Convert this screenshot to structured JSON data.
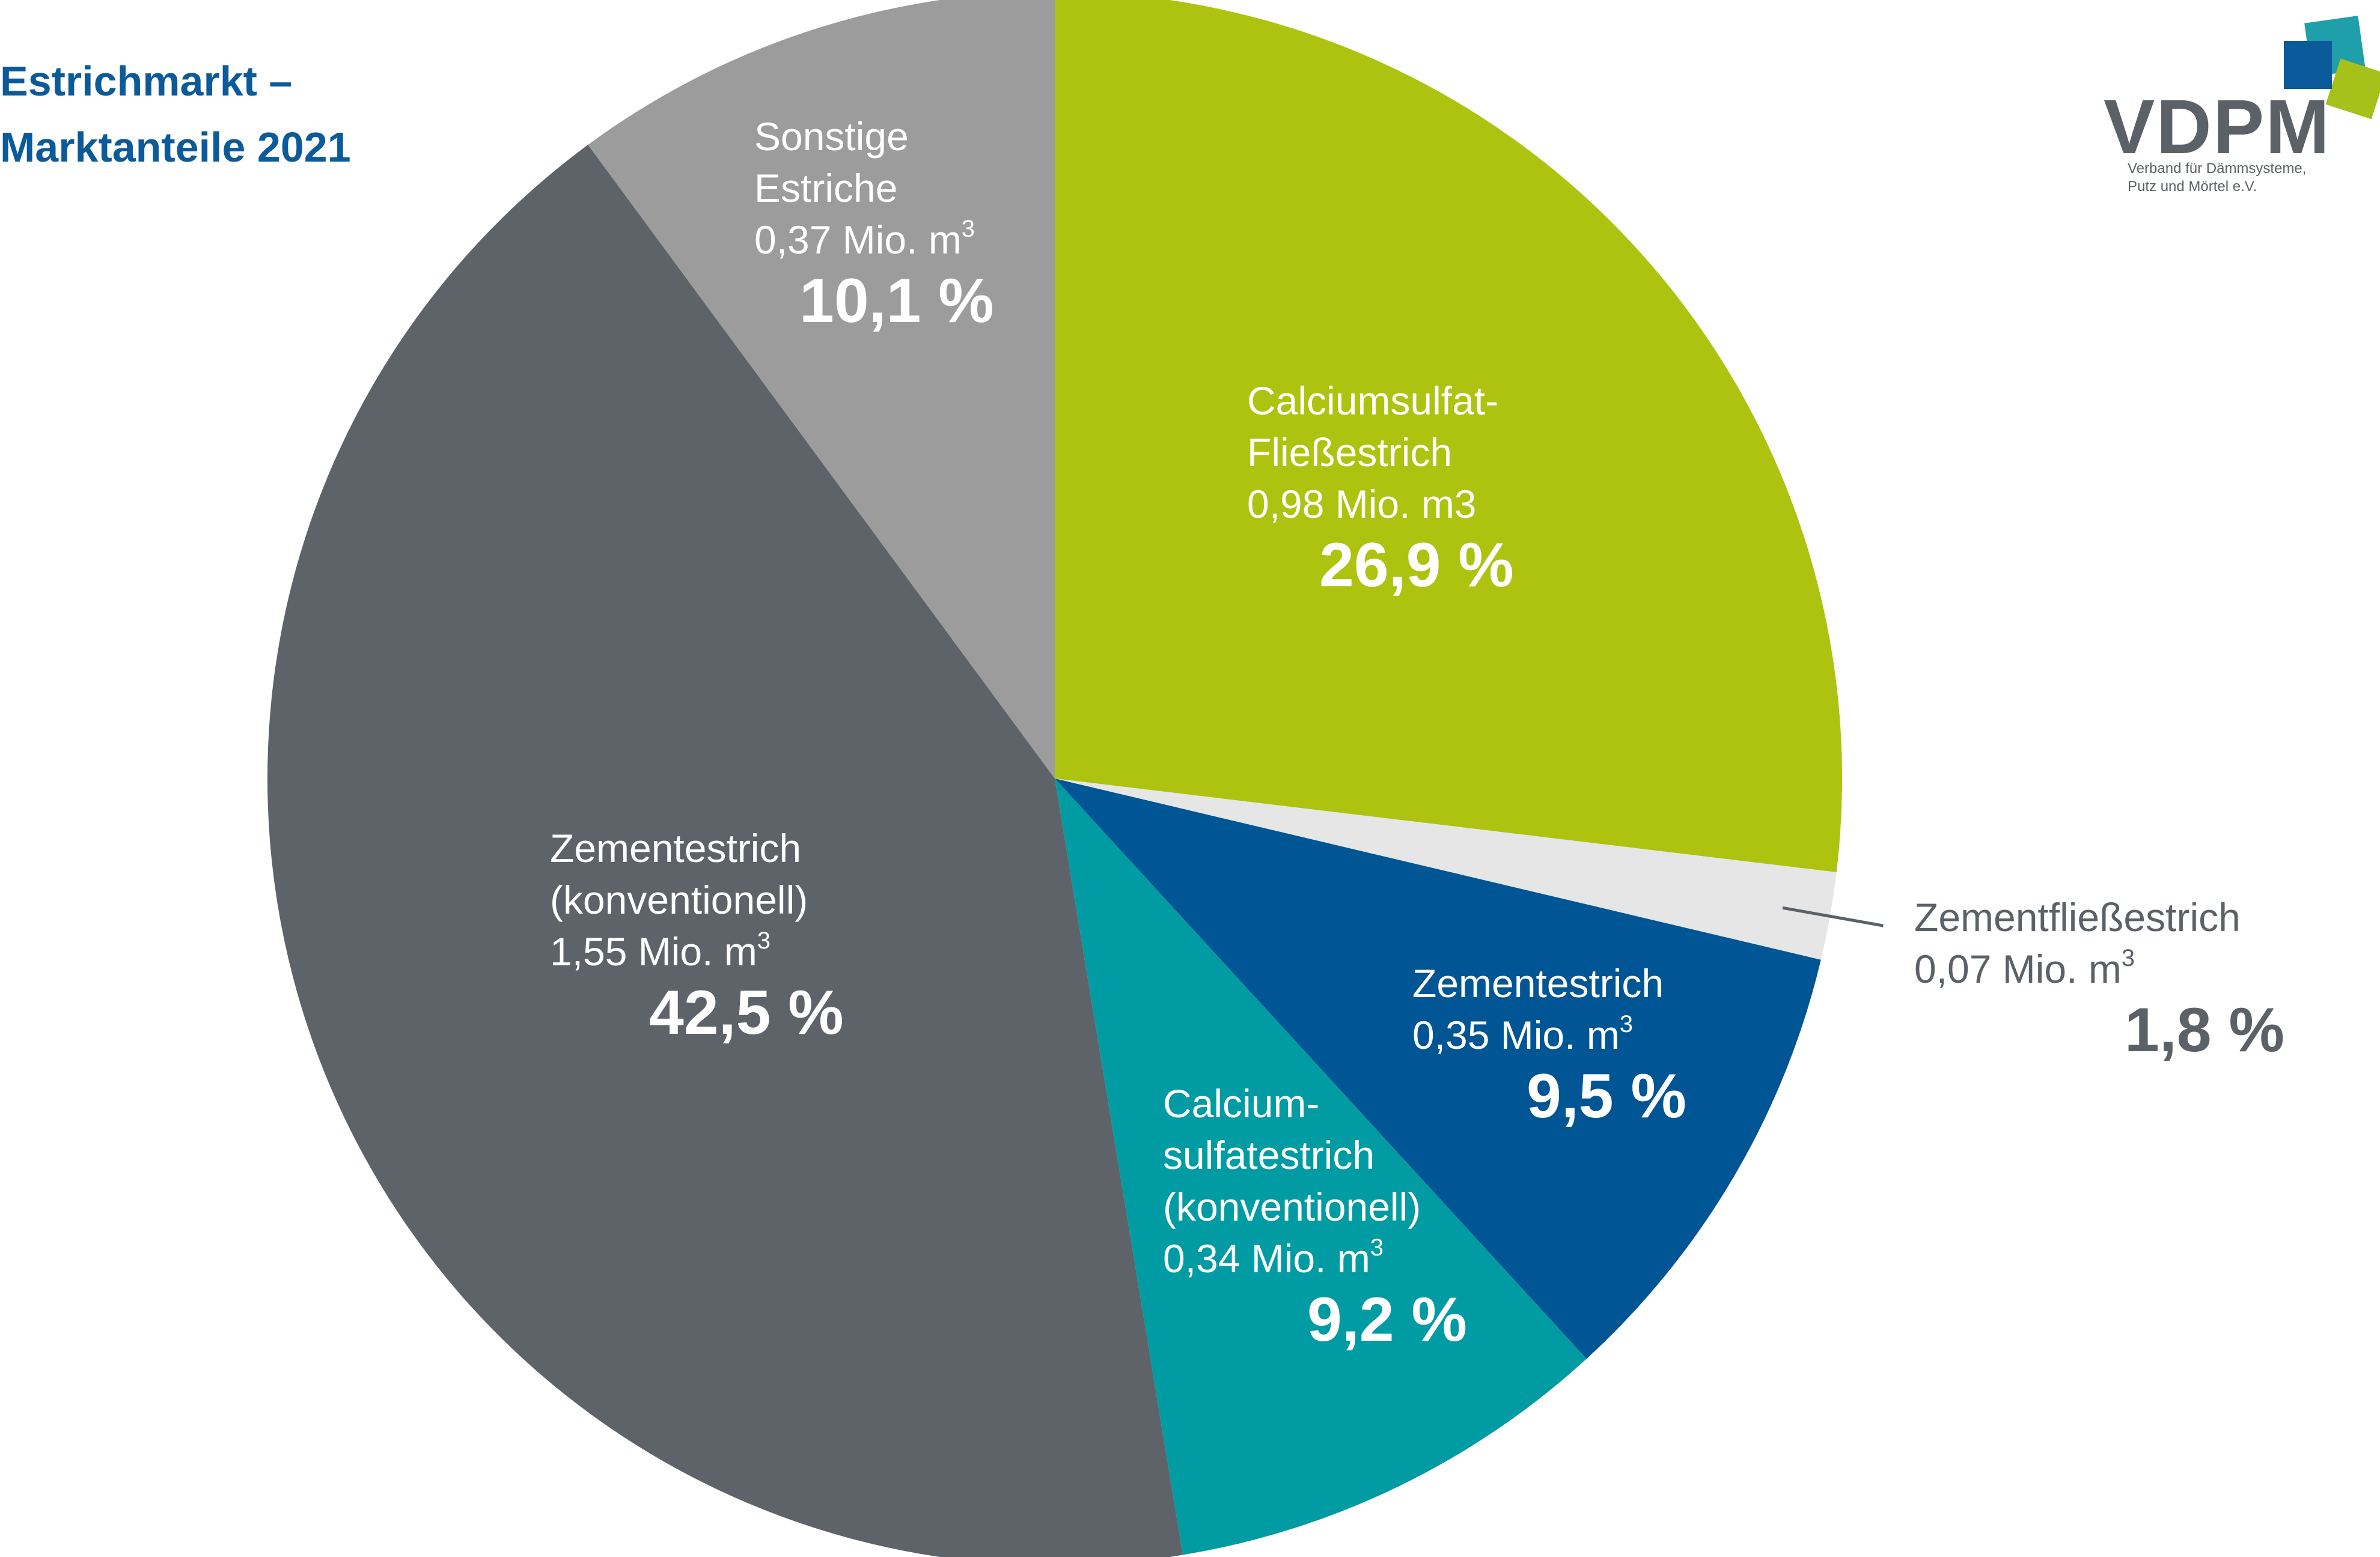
{
  "header": {
    "title_line1": "Estrichmarkt –",
    "title_line2": "Marktanteile 2021"
  },
  "logo": {
    "name": "VDPM",
    "sub_line1": "Verband für Dämmsysteme,",
    "sub_line2": "Putz und Mörtel e.V."
  },
  "colors": {
    "title": "#0b5a99",
    "logo_text": "#5b6167",
    "logo_square_blue": "#0b5a99",
    "logo_square_teal": "#139aa4",
    "logo_square_green": "#a6c11a"
  },
  "chart_data": {
    "type": "pie",
    "title": "Estrichmarkt – Marktanteile 2021",
    "start_angle_deg": 0,
    "direction": "clockwise",
    "slices": [
      {
        "name_lines": [
          "Calciumsulfat-",
          "Fließestrich"
        ],
        "amount": "0,98 Mio. m3",
        "amount_sup": "",
        "percent_label": "26,9 %",
        "value": 26.9,
        "color": "#adc30f",
        "label_color": "#ffffff",
        "label_side": "inside"
      },
      {
        "name_lines": [
          "Zementfließestrich"
        ],
        "amount": "0,07 Mio. m",
        "amount_sup": "3",
        "percent_label": "1,8 %",
        "value": 1.8,
        "color": "#e6e6e6",
        "label_color": "#5b6167",
        "label_side": "outside"
      },
      {
        "name_lines": [
          "Zementestrich"
        ],
        "amount": "0,35 Mio. m",
        "amount_sup": "3",
        "percent_label": "9,5 %",
        "value": 9.5,
        "color": "#005595",
        "label_color": "#ffffff",
        "label_side": "inside"
      },
      {
        "name_lines": [
          "Calcium-",
          "sulfatestrich",
          "(konventionell)"
        ],
        "amount": " 0,34 Mio. m",
        "amount_sup": "3",
        "percent_label": "9,2 %",
        "value": 9.2,
        "color": "#009ba3",
        "label_color": "#ffffff",
        "label_side": "inside"
      },
      {
        "name_lines": [
          "Zementestrich",
          "(konventionell)"
        ],
        "amount": "1,55 Mio. m",
        "amount_sup": "3",
        "percent_label": "42,5 %",
        "value": 42.5,
        "color": "#5d6369",
        "label_color": "#ffffff",
        "label_side": "inside"
      },
      {
        "name_lines": [
          "Sonstige",
          "Estriche"
        ],
        "amount": "0,37 Mio. m",
        "amount_sup": "3",
        "percent_label": "10,1 %",
        "value": 10.1,
        "color": "#9c9c9c",
        "label_color": "#ffffff",
        "label_side": "inside"
      }
    ]
  }
}
